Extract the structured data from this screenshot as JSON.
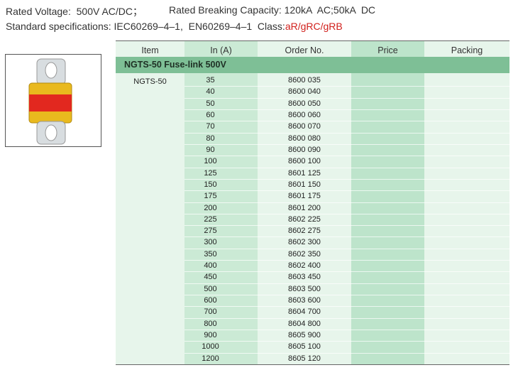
{
  "header": {
    "voltage": "Rated Voltage:  500V AC/DC；",
    "capacity": "Rated Breaking Capacity: 120kA  AC;50kA  DC",
    "standards": "Standard specifications: IEC60269–4–1,  EN60269–4–1  Class:",
    "class": "aR/gRC/gRB"
  },
  "table": {
    "columns": [
      "Item",
      "In (A)",
      "Order No.",
      "Price",
      "Packing"
    ],
    "section": "NGTS-50 Fuse-link 500V",
    "item": "NGTS-50",
    "rows": [
      [
        "35",
        "8600 035"
      ],
      [
        "40",
        "8600 040"
      ],
      [
        "50",
        "8600 050"
      ],
      [
        "60",
        "8600 060"
      ],
      [
        "70",
        "8600 070"
      ],
      [
        "80",
        "8600 080"
      ],
      [
        "90",
        "8600 090"
      ],
      [
        "100",
        "8600 100"
      ],
      [
        "125",
        "8601 125"
      ],
      [
        "150",
        "8601 150"
      ],
      [
        "175",
        "8601 175"
      ],
      [
        "200",
        "8601 200"
      ],
      [
        "225",
        "8602 225"
      ],
      [
        "275",
        "8602 275"
      ],
      [
        "300",
        "8602 300"
      ],
      [
        "350",
        "8602 350"
      ],
      [
        "400",
        "8602 400"
      ],
      [
        "450",
        "8603 450"
      ],
      [
        "500",
        "8603 500"
      ],
      [
        "600",
        "8603 600"
      ],
      [
        "700",
        "8604 700"
      ],
      [
        "800",
        "8604 800"
      ],
      [
        "900",
        "8605 900"
      ],
      [
        "1000",
        "8605 100"
      ],
      [
        "1200",
        "8605 120"
      ]
    ]
  }
}
